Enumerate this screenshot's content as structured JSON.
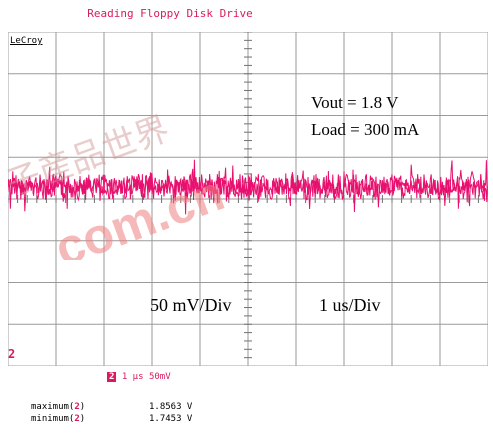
{
  "title": "Reading Floppy Disk Drive",
  "brand": "LeCroy",
  "annotations": {
    "vout": "Vout  = 1.8 V",
    "load": "Load = 300 mA",
    "volts_per_div": "50 mV/Div",
    "time_per_div": "1 us/Div"
  },
  "channel_marker": "2",
  "settings": {
    "channel": "2",
    "timebase": "1 µs",
    "scale": "50mV"
  },
  "measurements": [
    {
      "label": "maximum(",
      "channel": "2",
      "close": ")",
      "value": "1.8563 V"
    },
    {
      "label": "minimum(",
      "channel": "2",
      "close": ")",
      "value": "1.7453 V"
    }
  ],
  "watermark": {
    "text": ".com.cn",
    "cjk": "子産品世界"
  },
  "colors": {
    "trace": "#e8106f",
    "grid": "#909090",
    "title": "#d81b60"
  }
}
